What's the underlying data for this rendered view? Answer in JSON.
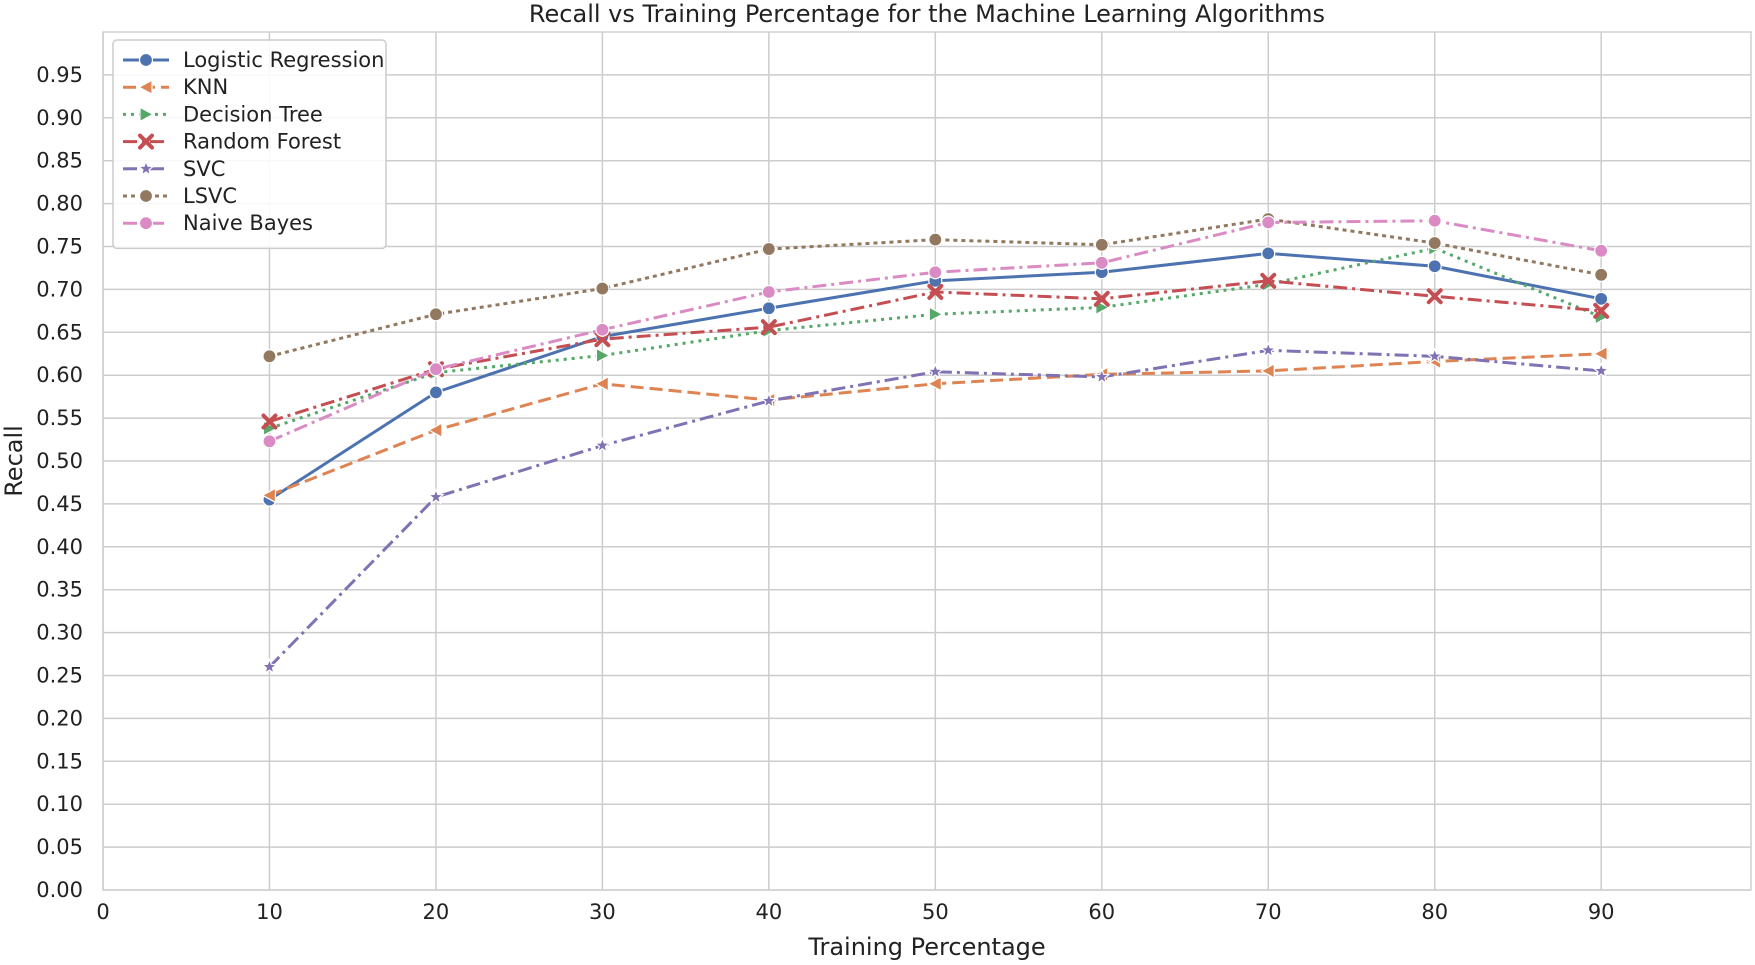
{
  "chart_data": {
    "type": "line",
    "title": "Recall vs Training Percentage for the Machine Learning Algorithms",
    "xlabel": "Training Percentage",
    "ylabel": "Recall",
    "xlim": [
      0,
      99
    ],
    "ylim": [
      0,
      1.0
    ],
    "xticks": [
      0,
      10,
      20,
      30,
      40,
      50,
      60,
      70,
      80,
      90
    ],
    "yticks": [
      0.0,
      0.05,
      0.1,
      0.15,
      0.2,
      0.25,
      0.3,
      0.35,
      0.4,
      0.45,
      0.5,
      0.55,
      0.6,
      0.65,
      0.7,
      0.75,
      0.8,
      0.85,
      0.9,
      0.95
    ],
    "ytick_labels": [
      "0.00",
      "0.05",
      "0.10",
      "0.15",
      "0.20",
      "0.25",
      "0.30",
      "0.35",
      "0.40",
      "0.45",
      "0.50",
      "0.55",
      "0.60",
      "0.65",
      "0.70",
      "0.75",
      "0.80",
      "0.85",
      "0.90",
      "0.95"
    ],
    "grid": true,
    "legend_position": "top-left",
    "x": [
      10,
      20,
      30,
      40,
      50,
      60,
      70,
      80,
      90
    ],
    "series": [
      {
        "name": "Logistic Regression",
        "color": "#4c72b0",
        "dash": "solid",
        "marker": "circle",
        "values": [
          0.455,
          0.58,
          0.645,
          0.678,
          0.71,
          0.72,
          0.742,
          0.727,
          0.689
        ]
      },
      {
        "name": "KNN",
        "color": "#dd8452",
        "dash": "dashed",
        "marker": "triangle-left",
        "values": [
          0.46,
          0.536,
          0.59,
          0.571,
          0.59,
          0.601,
          0.605,
          0.616,
          0.625
        ]
      },
      {
        "name": "Decision Tree",
        "color": "#55a868",
        "dash": "dotted",
        "marker": "triangle-right",
        "values": [
          0.538,
          0.603,
          0.623,
          0.652,
          0.671,
          0.679,
          0.706,
          0.748,
          0.668
        ]
      },
      {
        "name": "Random Forest",
        "color": "#c44e52",
        "dash": "dashdot",
        "marker": "x",
        "values": [
          0.546,
          0.607,
          0.642,
          0.656,
          0.697,
          0.689,
          0.71,
          0.692,
          0.675
        ]
      },
      {
        "name": "SVC",
        "color": "#8172b3",
        "dash": "dashdot",
        "marker": "star",
        "values": [
          0.26,
          0.458,
          0.518,
          0.57,
          0.604,
          0.598,
          0.629,
          0.622,
          0.605
        ]
      },
      {
        "name": "LSVC",
        "color": "#937860",
        "dash": "densedot",
        "marker": "circle",
        "values": [
          0.622,
          0.671,
          0.701,
          0.747,
          0.758,
          0.752,
          0.782,
          0.754,
          0.717
        ]
      },
      {
        "name": "Naive Bayes",
        "color": "#da8bc3",
        "dash": "dashdot",
        "marker": "circle",
        "values": [
          0.523,
          0.607,
          0.653,
          0.697,
          0.72,
          0.731,
          0.778,
          0.78,
          0.745
        ]
      }
    ]
  }
}
